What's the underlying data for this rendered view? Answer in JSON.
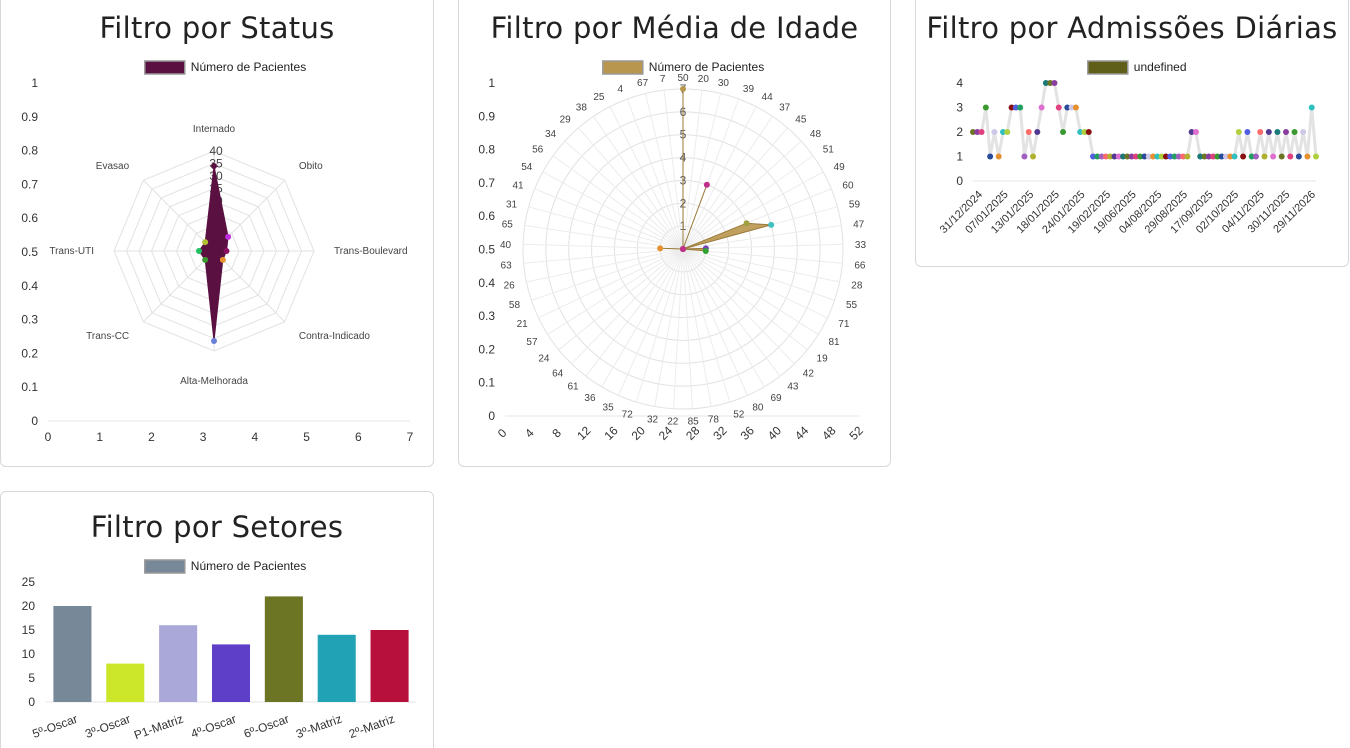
{
  "status_panel": {
    "title": "Filtro por Status",
    "chart_data": {
      "type": "radar",
      "legend": "Número de Pacientes",
      "color": "#5a1040",
      "categories": [
        "Internado",
        "Obito",
        "Trans-Boulevard",
        "Contra-Indicado",
        "Alta-Melhorada",
        "Trans-CC",
        "Trans-UTI",
        "Evasao"
      ],
      "values": [
        34,
        8,
        5,
        5,
        36,
        5,
        6,
        5
      ],
      "point_colors": [
        "#5a1040",
        "#c030e0",
        "#8b1060",
        "#e89030",
        "#6a80d8",
        "#3a9a30",
        "#20c060",
        "#b0c030"
      ],
      "radial_ticks": [
        40,
        35,
        30,
        25,
        20,
        15,
        10,
        5
      ],
      "radial_max": 40,
      "x_axis_ticks": [
        "0",
        "1",
        "2",
        "3",
        "4",
        "5",
        "6",
        "7"
      ],
      "y_axis_ticks": [
        "0",
        "0.1",
        "0.2",
        "0.3",
        "0.4",
        "0.5",
        "0.6",
        "0.7",
        "0.8",
        "0.9",
        "1"
      ]
    }
  },
  "age_panel": {
    "title": "Filtro por Média de Idade",
    "chart_data": {
      "type": "radar",
      "legend": "Número de Pacientes",
      "color": "#b8964e",
      "categories": [
        "50",
        "20",
        "30",
        "39",
        "44",
        "37",
        "45",
        "48",
        "51",
        "49",
        "60",
        "59",
        "47",
        "33",
        "66",
        "28",
        "55",
        "71",
        "81",
        "19",
        "42",
        "43",
        "69",
        "80",
        "52",
        "78",
        "85",
        "22",
        "32",
        "72",
        "35",
        "36",
        "61",
        "64",
        "24",
        "57",
        "21",
        "58",
        "26",
        "63",
        "40",
        "65",
        "31",
        "41",
        "54",
        "56",
        "34",
        "29",
        "38",
        "25",
        "4",
        "67",
        "7"
      ],
      "values": [
        7,
        0,
        0,
        3,
        0,
        0,
        0,
        0,
        0,
        0,
        3,
        4,
        0,
        1,
        1,
        0,
        0,
        0,
        0,
        0,
        0,
        0,
        0,
        0,
        0,
        0,
        0,
        0,
        0,
        0,
        0,
        0,
        0,
        0,
        0,
        0,
        0,
        0,
        0,
        0,
        1,
        0,
        0,
        0,
        0,
        0,
        0,
        0,
        0,
        0,
        0,
        0,
        0
      ],
      "radial_ticks": [
        "7",
        "6",
        "5",
        "4",
        "3",
        "2",
        "1"
      ],
      "x_axis_ticks": [
        "0",
        "4",
        "8",
        "12",
        "16",
        "20",
        "24",
        "28",
        "32",
        "36",
        "40",
        "44",
        "48",
        "52"
      ],
      "y_axis_ticks": [
        "0",
        "0.1",
        "0.2",
        "0.3",
        "0.4",
        "0.5",
        "0.6",
        "0.7",
        "0.8",
        "0.9",
        "1"
      ]
    }
  },
  "admissions_panel": {
    "title": "Filtro por Admissões Diárias",
    "chart_data": {
      "type": "line",
      "legend": "undefined",
      "legend_color": "#5f5f1a",
      "line_color": "#e3e3e3",
      "values": [
        2,
        2,
        2,
        3,
        1,
        2,
        1,
        2,
        2,
        3,
        3,
        3,
        1,
        2,
        1,
        2,
        3,
        4,
        4,
        4,
        3,
        2,
        3,
        3,
        3,
        2,
        2,
        2,
        1,
        1,
        1,
        1,
        1,
        1,
        1,
        1,
        1,
        1,
        1,
        1,
        1,
        1,
        1,
        1,
        1,
        1,
        1,
        1,
        1,
        1,
        1,
        2,
        2,
        1,
        1,
        1,
        1,
        1,
        1,
        1,
        1,
        1,
        2,
        1,
        2,
        1,
        1,
        2,
        1,
        2,
        1,
        2,
        1,
        2,
        1,
        2,
        1,
        2,
        1,
        3,
        1
      ],
      "x_tick_labels": [
        "31/12/2024",
        "07/01/2025",
        "13/01/2025",
        "18/01/2025",
        "24/01/2025",
        "19/02/2025",
        "19/06/2025",
        "04/08/2025",
        "29/08/2025",
        "17/09/2025",
        "02/10/2025",
        "04/11/2025",
        "30/11/2025",
        "29/11/2026"
      ],
      "y_axis_ticks": [
        "0",
        "1",
        "2",
        "3",
        "4"
      ],
      "ylim": [
        0,
        4
      ]
    }
  },
  "sectors_panel": {
    "title": "Filtro por Setores",
    "chart_data": {
      "type": "bar",
      "legend": "Número de Pacientes",
      "legend_color": "#778899",
      "categories": [
        "5º-Oscar",
        "3º-Oscar",
        "P1-Matriz",
        "4º-Oscar",
        "6º-Oscar",
        "3º-Matriz",
        "2º-Matriz"
      ],
      "values": [
        20,
        8,
        16,
        12,
        22,
        14,
        15
      ],
      "colors": [
        "#778899",
        "#cce62a",
        "#aaa8d8",
        "#5d3fc8",
        "#6b7523",
        "#22a3b5",
        "#b8103c"
      ],
      "y_axis_ticks": [
        "0",
        "5",
        "10",
        "15",
        "20",
        "25"
      ],
      "ylim": [
        0,
        25
      ]
    }
  }
}
